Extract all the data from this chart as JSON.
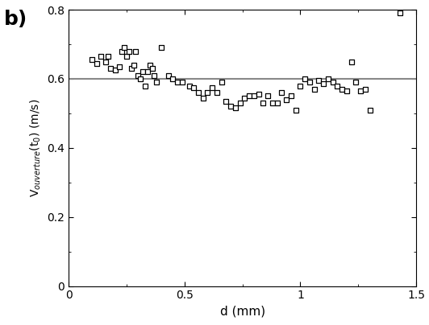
{
  "x_data": [
    0.1,
    0.12,
    0.14,
    0.16,
    0.17,
    0.18,
    0.2,
    0.22,
    0.23,
    0.24,
    0.25,
    0.26,
    0.27,
    0.28,
    0.29,
    0.3,
    0.31,
    0.32,
    0.33,
    0.34,
    0.35,
    0.36,
    0.37,
    0.38,
    0.4,
    0.43,
    0.45,
    0.47,
    0.49,
    0.52,
    0.54,
    0.56,
    0.58,
    0.6,
    0.62,
    0.64,
    0.66,
    0.68,
    0.7,
    0.72,
    0.74,
    0.76,
    0.78,
    0.8,
    0.82,
    0.84,
    0.86,
    0.88,
    0.9,
    0.92,
    0.94,
    0.96,
    0.98,
    1.0,
    1.02,
    1.04,
    1.06,
    1.08,
    1.1,
    1.12,
    1.14,
    1.16,
    1.18,
    1.2,
    1.22,
    1.24,
    1.26,
    1.28,
    1.3,
    1.43
  ],
  "y_data": [
    0.655,
    0.645,
    0.665,
    0.65,
    0.665,
    0.63,
    0.625,
    0.635,
    0.68,
    0.69,
    0.665,
    0.68,
    0.63,
    0.64,
    0.68,
    0.61,
    0.6,
    0.62,
    0.58,
    0.62,
    0.64,
    0.63,
    0.61,
    0.59,
    0.69,
    0.61,
    0.6,
    0.59,
    0.59,
    0.58,
    0.575,
    0.56,
    0.545,
    0.56,
    0.575,
    0.56,
    0.59,
    0.535,
    0.52,
    0.515,
    0.53,
    0.545,
    0.55,
    0.55,
    0.555,
    0.53,
    0.55,
    0.53,
    0.53,
    0.56,
    0.54,
    0.55,
    0.51,
    0.58,
    0.6,
    0.59,
    0.57,
    0.595,
    0.585,
    0.6,
    0.59,
    0.58,
    0.57,
    0.565,
    0.65,
    0.59,
    0.565,
    0.57,
    0.51,
    0.79
  ],
  "hline_y": 0.6,
  "hline_color": "#888888",
  "hline_lw": 1.5,
  "xlabel": "d (mm)",
  "ylabel": "V$_{ouverture}$(t$_0$) (m/s)",
  "panel_label": "b)",
  "xlim": [
    0,
    1.5
  ],
  "ylim": [
    0,
    0.8
  ],
  "xtick_vals": [
    0,
    0.5,
    1.0,
    1.5
  ],
  "xtick_labels": [
    "0",
    "0.5",
    "1",
    "1.5"
  ],
  "ytick_vals": [
    0,
    0.2,
    0.4,
    0.6,
    0.8
  ],
  "ytick_labels": [
    "0",
    "0.2",
    "0.4",
    "0.6",
    "0.8"
  ],
  "marker_size": 22,
  "marker_color": "black",
  "marker_facecolor": "white",
  "background_color": "white",
  "fig_width": 5.32,
  "fig_height": 4.04,
  "dpi": 100
}
